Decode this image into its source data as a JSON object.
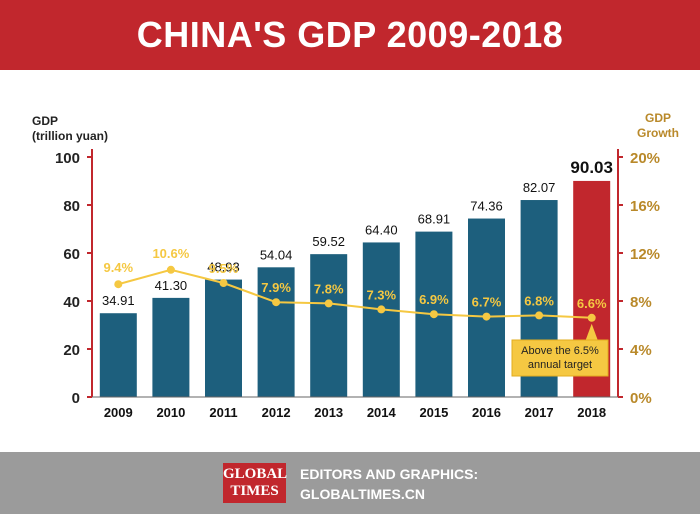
{
  "header": {
    "title": "CHINA'S GDP 2009-2018"
  },
  "chart_data": {
    "type": "bar",
    "categories": [
      "2009",
      "2010",
      "2011",
      "2012",
      "2013",
      "2014",
      "2015",
      "2016",
      "2017",
      "2018"
    ],
    "values": [
      34.91,
      41.3,
      48.93,
      54.04,
      59.52,
      64.4,
      68.91,
      74.36,
      82.07,
      90.03
    ],
    "value_labels": [
      "34.91",
      "41.30",
      "48.93",
      "54.04",
      "59.52",
      "64.40",
      "68.91",
      "74.36",
      "82.07",
      "90.03"
    ],
    "ylabel_left": [
      "GDP",
      "(trillion yuan)"
    ],
    "ylim_left": [
      0,
      100
    ],
    "yticks_left": [
      "0",
      "20",
      "40",
      "60",
      "80",
      "100"
    ],
    "growth": {
      "type": "line",
      "values": [
        9.4,
        10.6,
        9.5,
        7.9,
        7.8,
        7.3,
        6.9,
        6.7,
        6.8,
        6.6
      ],
      "labels": [
        "9.4%",
        "10.6%",
        "9.5%",
        "7.9%",
        "7.8%",
        "7.3%",
        "6.9%",
        "6.7%",
        "6.8%",
        "6.6%"
      ],
      "ylabel_right": [
        "GDP",
        "Growth"
      ],
      "ylim_right": [
        0,
        20
      ],
      "yticks_right": [
        "0%",
        "4%",
        "8%",
        "12%",
        "16%",
        "20%"
      ]
    },
    "annotation": [
      "Above the 6.5%",
      "annual target"
    ],
    "colors": {
      "bar": "#1d5f7d",
      "highlight_bar": "#c1272d",
      "line": "#f5c842",
      "growth_label": "#f5c842",
      "right_axis": "#b9892a",
      "axis": "#c1272d"
    }
  },
  "footer": {
    "logo_text": [
      "GLOBAL",
      "TIMES"
    ],
    "credit_lines": [
      "EDITORS AND GRAPHICS:",
      "GLOBALTIMES.CN"
    ]
  }
}
